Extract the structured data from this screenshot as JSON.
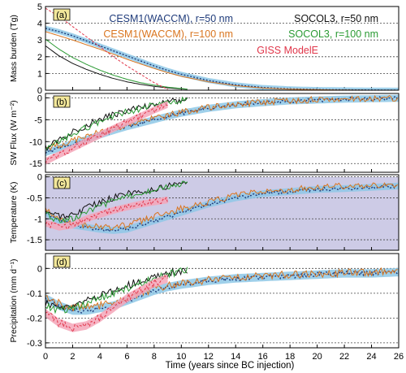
{
  "chart_data": [
    {
      "id": "a",
      "type": "line",
      "panel_label": "(a)",
      "ylabel": "Mass burden (Tg)",
      "xlim": [
        0,
        26
      ],
      "ylim": [
        0,
        5
      ],
      "yticks": [
        0,
        1,
        2,
        3,
        4,
        5
      ],
      "grid_y": true,
      "series": [
        {
          "name": "CESM1(WACCM), r=50 nm",
          "color": "#1f3b7a",
          "style": "dotted",
          "band": true,
          "band_color": "#8ec8e6",
          "x": [
            0,
            1,
            2,
            3,
            4,
            5,
            6,
            7,
            8,
            9,
            10,
            12,
            14,
            16,
            18,
            20,
            22,
            24,
            26
          ],
          "y": [
            3.7,
            3.5,
            3.25,
            2.95,
            2.65,
            2.35,
            2.05,
            1.75,
            1.45,
            1.18,
            0.95,
            0.58,
            0.32,
            0.16,
            0.08,
            0.04,
            0.02,
            0.01,
            0.0
          ]
        },
        {
          "name": "CESM1(WACCM), r=100 nm",
          "color": "#d9751f",
          "style": "solid",
          "band": false,
          "x": [
            0,
            1,
            2,
            3,
            4,
            5,
            6,
            7,
            8,
            9,
            10,
            12,
            14,
            16,
            18,
            20,
            22,
            24,
            26
          ],
          "y": [
            3.5,
            3.25,
            3.0,
            2.72,
            2.45,
            2.15,
            1.85,
            1.57,
            1.3,
            1.05,
            0.83,
            0.5,
            0.27,
            0.13,
            0.06,
            0.03,
            0.01,
            0.0,
            0.0
          ]
        },
        {
          "name": "SOCOL3, r=50 nm",
          "color": "#111111",
          "style": "solid",
          "band": false,
          "x": [
            0,
            1,
            2,
            3,
            4,
            5,
            6,
            7,
            8,
            9,
            10,
            10.5
          ],
          "y": [
            2.65,
            2.05,
            1.6,
            1.25,
            0.95,
            0.7,
            0.5,
            0.35,
            0.23,
            0.14,
            0.08,
            0.05
          ]
        },
        {
          "name": "SOCOL3, r=100 nm",
          "color": "#2a9a33",
          "style": "solid",
          "band": false,
          "x": [
            0,
            1,
            2,
            3,
            4,
            5,
            6,
            7,
            8,
            9,
            10,
            10.5
          ],
          "y": [
            3.05,
            2.45,
            1.95,
            1.55,
            1.2,
            0.9,
            0.65,
            0.45,
            0.3,
            0.18,
            0.1,
            0.06
          ]
        },
        {
          "name": "GISS ModelE",
          "color": "#e0364a",
          "style": "dashed",
          "band": false,
          "x": [
            0,
            1,
            2,
            3,
            4,
            5,
            6,
            7,
            8,
            9
          ],
          "y": [
            4.9,
            4.4,
            3.8,
            3.2,
            2.6,
            2.0,
            1.45,
            0.95,
            0.45,
            0.05
          ]
        }
      ]
    },
    {
      "id": "b",
      "type": "line",
      "panel_label": "(b)",
      "ylabel": "SW Flux (W m⁻²)",
      "xlim": [
        0,
        26
      ],
      "ylim": [
        -17,
        1
      ],
      "yticks": [
        0,
        -5,
        -10,
        -15
      ],
      "grid_y": true,
      "series": [
        {
          "name": "CESM1(WACCM), r=50 nm",
          "color": "#1f3b7a",
          "style": "dotted",
          "band": true,
          "band_color": "#8ec8e6",
          "x": [
            0,
            1,
            2,
            3,
            4,
            5,
            6,
            7,
            8,
            9,
            10,
            12,
            14,
            16,
            18,
            20,
            22,
            24,
            26
          ],
          "y": [
            -12.5,
            -11.5,
            -10.5,
            -9.5,
            -8.5,
            -7.5,
            -6.6,
            -5.8,
            -5.0,
            -4.2,
            -3.5,
            -2.4,
            -1.6,
            -1.1,
            -0.7,
            -0.5,
            -0.3,
            -0.2,
            -0.1
          ]
        },
        {
          "name": "CESM1(WACCM), r=100 nm",
          "color": "#d9751f",
          "style": "solid",
          "band": false,
          "x": [
            0,
            1,
            2,
            3,
            4,
            5,
            6,
            7,
            8,
            9,
            10,
            12,
            14,
            16,
            18,
            20,
            22,
            24,
            26
          ],
          "y": [
            -11.5,
            -10.8,
            -9.8,
            -8.8,
            -7.9,
            -7.0,
            -6.2,
            -5.4,
            -4.7,
            -4.0,
            -3.3,
            -2.2,
            -1.5,
            -1.0,
            -0.6,
            -0.4,
            -0.3,
            -0.2,
            -0.1
          ]
        },
        {
          "name": "SOCOL3, r=50 nm",
          "color": "#111111",
          "style": "solid",
          "band": false,
          "x": [
            0,
            1,
            2,
            3,
            4,
            5,
            6,
            7,
            8,
            9,
            10,
            10.5
          ],
          "y": [
            -11.5,
            -9.5,
            -7.8,
            -6.3,
            -5.0,
            -3.9,
            -3.0,
            -2.2,
            -1.6,
            -1.0,
            -0.6,
            -0.4
          ]
        },
        {
          "name": "SOCOL3, r=100 nm",
          "color": "#2a9a33",
          "style": "solid",
          "band": false,
          "x": [
            0,
            1,
            2,
            3,
            4,
            5,
            6,
            7,
            8,
            9,
            10,
            10.5
          ],
          "y": [
            -12.0,
            -10.0,
            -8.3,
            -6.8,
            -5.4,
            -4.2,
            -3.2,
            -2.4,
            -1.7,
            -1.1,
            -0.7,
            -0.5
          ]
        },
        {
          "name": "GISS ModelE",
          "color": "#e0364a",
          "style": "dashed",
          "band": true,
          "band_color": "#f4a6b8",
          "x": [
            0,
            1,
            2,
            3,
            4,
            5,
            6,
            7,
            8,
            9
          ],
          "y": [
            -14.5,
            -13.0,
            -11.5,
            -10.0,
            -8.5,
            -7.0,
            -5.6,
            -4.2,
            -2.8,
            -1.5
          ]
        }
      ]
    },
    {
      "id": "c",
      "type": "line",
      "panel_label": "(c)",
      "ylabel": "Temperature (K)",
      "xlim": [
        0,
        26
      ],
      "ylim": [
        -1.75,
        0.05
      ],
      "yticks": [
        0.0,
        -0.5,
        -1.0,
        -1.5
      ],
      "grid_y": true,
      "shade_range": [
        -1.75,
        0.0
      ],
      "shade_color": "#cdcbe6",
      "series": [
        {
          "name": "CESM1(WACCM), r=50 nm",
          "color": "#1f3b7a",
          "style": "dotted",
          "band": true,
          "band_color": "#8ec8e6",
          "x": [
            0,
            1,
            2,
            3,
            4,
            5,
            6,
            7,
            8,
            9,
            10,
            12,
            14,
            16,
            18,
            20,
            22,
            24,
            26
          ],
          "y": [
            -0.85,
            -1.05,
            -1.15,
            -1.2,
            -1.25,
            -1.28,
            -1.25,
            -1.15,
            -1.05,
            -0.95,
            -0.85,
            -0.65,
            -0.5,
            -0.4,
            -0.35,
            -0.3,
            -0.28,
            -0.25,
            -0.22
          ]
        },
        {
          "name": "CESM1(WACCM), r=100 nm",
          "color": "#d9751f",
          "style": "solid",
          "band": false,
          "x": [
            0,
            1,
            2,
            3,
            4,
            5,
            6,
            7,
            8,
            9,
            10,
            12,
            14,
            16,
            18,
            20,
            22,
            24,
            26
          ],
          "y": [
            -0.8,
            -1.0,
            -1.1,
            -1.15,
            -1.2,
            -1.2,
            -1.15,
            -1.05,
            -0.95,
            -0.85,
            -0.75,
            -0.6,
            -0.45,
            -0.35,
            -0.3,
            -0.25,
            -0.22,
            -0.2,
            -0.18
          ]
        },
        {
          "name": "SOCOL3, r=50 nm",
          "color": "#111111",
          "style": "solid",
          "band": false,
          "x": [
            0,
            1,
            2,
            3,
            4,
            5,
            6,
            7,
            8,
            9,
            10,
            10.5
          ],
          "y": [
            -0.8,
            -0.95,
            -0.9,
            -0.75,
            -0.6,
            -0.5,
            -0.4,
            -0.35,
            -0.3,
            -0.22,
            -0.15,
            -0.1
          ]
        },
        {
          "name": "SOCOL3, r=100 nm",
          "color": "#2a9a33",
          "style": "solid",
          "band": false,
          "x": [
            0,
            1,
            2,
            3,
            4,
            5,
            6,
            7,
            8,
            9,
            10,
            10.5
          ],
          "y": [
            -0.9,
            -1.05,
            -1.0,
            -0.85,
            -0.7,
            -0.58,
            -0.48,
            -0.4,
            -0.32,
            -0.25,
            -0.18,
            -0.12
          ]
        },
        {
          "name": "GISS ModelE",
          "color": "#e0364a",
          "style": "dashed",
          "band": true,
          "band_color": "#f4a6b8",
          "x": [
            0,
            1,
            2,
            3,
            4,
            5,
            6,
            7,
            8,
            9
          ],
          "y": [
            -1.1,
            -1.2,
            -1.15,
            -1.0,
            -0.9,
            -0.8,
            -0.72,
            -0.65,
            -0.6,
            -0.55
          ]
        }
      ]
    },
    {
      "id": "d",
      "type": "line",
      "panel_label": "(d)",
      "ylabel": "Precipitation (mm d⁻¹)",
      "xlim": [
        0,
        26
      ],
      "ylim": [
        -0.32,
        0.06
      ],
      "yticks": [
        0.0,
        -0.1,
        -0.2,
        -0.3
      ],
      "grid_y": true,
      "series": [
        {
          "name": "CESM1(WACCM), r=50 nm",
          "color": "#1f3b7a",
          "style": "dotted",
          "band": true,
          "band_color": "#8ec8e6",
          "x": [
            0,
            1,
            2,
            3,
            4,
            5,
            6,
            7,
            8,
            9,
            10,
            12,
            14,
            16,
            18,
            20,
            22,
            24,
            26
          ],
          "y": [
            -0.12,
            -0.15,
            -0.17,
            -0.17,
            -0.16,
            -0.15,
            -0.13,
            -0.11,
            -0.09,
            -0.075,
            -0.065,
            -0.05,
            -0.04,
            -0.035,
            -0.03,
            -0.025,
            -0.02,
            -0.02,
            -0.015
          ]
        },
        {
          "name": "CESM1(WACCM), r=100 nm",
          "color": "#d9751f",
          "style": "solid",
          "band": false,
          "x": [
            0,
            1,
            2,
            3,
            4,
            5,
            6,
            7,
            8,
            9,
            10,
            12,
            14,
            16,
            18,
            20,
            22,
            24,
            26
          ],
          "y": [
            -0.11,
            -0.14,
            -0.16,
            -0.16,
            -0.15,
            -0.14,
            -0.12,
            -0.1,
            -0.085,
            -0.07,
            -0.06,
            -0.045,
            -0.035,
            -0.03,
            -0.025,
            -0.02,
            -0.018,
            -0.015,
            -0.012
          ]
        },
        {
          "name": "SOCOL3, r=50 nm",
          "color": "#111111",
          "style": "solid",
          "band": false,
          "x": [
            0,
            1,
            2,
            3,
            4,
            5,
            6,
            7,
            8,
            9,
            10,
            10.5
          ],
          "y": [
            -0.14,
            -0.16,
            -0.15,
            -0.13,
            -0.11,
            -0.09,
            -0.07,
            -0.05,
            -0.035,
            -0.02,
            -0.01,
            -0.005
          ]
        },
        {
          "name": "SOCOL3, r=100 nm",
          "color": "#2a9a33",
          "style": "solid",
          "band": false,
          "x": [
            0,
            1,
            2,
            3,
            4,
            5,
            6,
            7,
            8,
            9,
            10,
            10.5
          ],
          "y": [
            -0.15,
            -0.17,
            -0.16,
            -0.14,
            -0.12,
            -0.1,
            -0.08,
            -0.06,
            -0.04,
            -0.025,
            -0.012,
            -0.006
          ]
        },
        {
          "name": "GISS ModelE",
          "color": "#e0364a",
          "style": "dashed",
          "band": true,
          "band_color": "#f4a6b8",
          "x": [
            0,
            1,
            2,
            3,
            4,
            5,
            6,
            7,
            8,
            9
          ],
          "y": [
            -0.18,
            -0.22,
            -0.24,
            -0.23,
            -0.2,
            -0.16,
            -0.12,
            -0.09,
            -0.06,
            -0.04
          ]
        }
      ]
    }
  ],
  "x_axis": {
    "label": "Time (years since BC injection)",
    "ticks": [
      0,
      2,
      4,
      6,
      8,
      10,
      12,
      14,
      16,
      18,
      20,
      22,
      24,
      26
    ]
  },
  "legend": {
    "placement": "top-right of panel (a)",
    "entries": [
      {
        "label": "CESM1(WACCM), r=50 nm",
        "color": "#1f3b7a"
      },
      {
        "label": "SOCOL3, r=50 nm",
        "color": "#111111"
      },
      {
        "label": "CESM1(WACCM), r=100 nm",
        "color": "#d9751f"
      },
      {
        "label": "SOCOL3, r=100 nm",
        "color": "#2a9a33"
      },
      {
        "label": "GISS ModelE",
        "color": "#e0364a"
      }
    ]
  }
}
